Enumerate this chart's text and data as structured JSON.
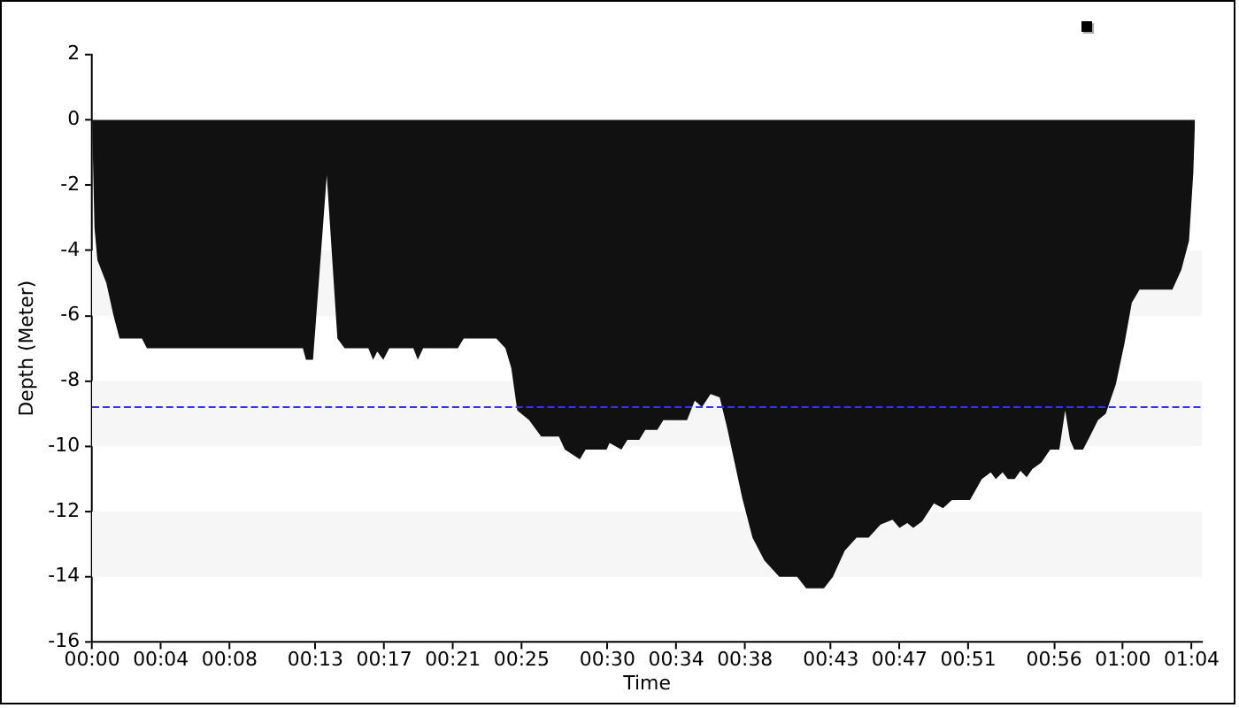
{
  "chart_data": {
    "type": "area",
    "xlabel": "Time",
    "ylabel": "Depth (Meter)",
    "x": [
      0,
      0.14,
      0.31,
      0.83,
      1.25,
      1.6,
      2.9,
      3.19,
      12.27,
      12.45,
      12.86,
      13.66,
      14.28,
      14.7,
      16.08,
      16.36,
      16.6,
      16.95,
      17.3,
      18.7,
      18.96,
      19.27,
      21.29,
      21.63,
      23.53,
      24.06,
      24.4,
      24.75,
      25.44,
      26.14,
      27.17,
      27.52,
      28.39,
      28.73,
      29.95,
      30.12,
      30.81,
      31.16,
      31.85,
      32.2,
      32.9,
      33.25,
      34.63,
      35.08,
      35.5,
      36.0,
      36.53,
      36.95,
      37.4,
      37.85,
      38.44,
      39.13,
      40.0,
      41.04,
      41.56,
      42.6,
      43.12,
      43.81,
      44.5,
      45.2,
      45.89,
      46.59,
      47.0,
      47.45,
      47.8,
      48.32,
      49.0,
      49.53,
      50.05,
      51.1,
      51.79,
      52.31,
      52.6,
      53.0,
      53.3,
      53.7,
      54.04,
      54.4,
      54.73,
      55.25,
      55.77,
      56.3,
      56.64,
      56.92,
      57.17,
      57.68,
      58.03,
      58.55,
      59.0,
      59.59,
      60.11,
      60.52,
      60.97,
      62.88,
      63.4,
      63.85,
      64.1,
      64.2
    ],
    "series": [
      {
        "color": "#111111",
        "values": [
          0,
          -3.3,
          -4.3,
          -5.0,
          -6.0,
          -6.7,
          -6.7,
          -7.0,
          -7.0,
          -7.35,
          -7.35,
          -1.7,
          -6.7,
          -7.0,
          -7.0,
          -7.35,
          -7.1,
          -7.35,
          -7.0,
          -7.0,
          -7.35,
          -7.0,
          -7.0,
          -6.7,
          -6.7,
          -7.0,
          -7.6,
          -8.9,
          -9.2,
          -9.7,
          -9.7,
          -10.1,
          -10.4,
          -10.1,
          -10.1,
          -9.9,
          -10.1,
          -9.8,
          -9.8,
          -9.5,
          -9.5,
          -9.2,
          -9.2,
          -8.6,
          -8.8,
          -8.4,
          -8.5,
          -9.4,
          -10.5,
          -11.6,
          -12.8,
          -13.5,
          -14.0,
          -14.0,
          -14.35,
          -14.35,
          -14.0,
          -13.2,
          -12.8,
          -12.8,
          -12.4,
          -12.25,
          -12.5,
          -12.35,
          -12.5,
          -12.3,
          -11.75,
          -11.9,
          -11.65,
          -11.65,
          -11.0,
          -10.8,
          -11.0,
          -10.8,
          -11.0,
          -11.0,
          -10.75,
          -10.95,
          -10.7,
          -10.5,
          -10.1,
          -10.1,
          -8.9,
          -9.8,
          -10.1,
          -10.1,
          -9.75,
          -9.2,
          -9.0,
          -8.1,
          -6.8,
          -5.6,
          -5.2,
          -5.2,
          -4.6,
          -3.7,
          -1.6,
          0
        ]
      }
    ],
    "xlim": [
      0,
      64.6
    ],
    "xticks": [
      {
        "value": 0,
        "label": "00:00"
      },
      {
        "value": 4,
        "label": "00:04"
      },
      {
        "value": 8,
        "label": "00:08"
      },
      {
        "value": 13,
        "label": "00:13"
      },
      {
        "value": 17,
        "label": "00:17"
      },
      {
        "value": 21,
        "label": "00:21"
      },
      {
        "value": 25,
        "label": "00:25"
      },
      {
        "value": 30,
        "label": "00:30"
      },
      {
        "value": 34,
        "label": "00:34"
      },
      {
        "value": 38,
        "label": "00:38"
      },
      {
        "value": 43,
        "label": "00:43"
      },
      {
        "value": 47,
        "label": "00:47"
      },
      {
        "value": 51,
        "label": "00:51"
      },
      {
        "value": 56,
        "label": "00:56"
      },
      {
        "value": 60,
        "label": "01:00"
      },
      {
        "value": 64,
        "label": "01:04"
      }
    ],
    "ylim": [
      -16,
      2
    ],
    "yticks": [
      -16,
      -14,
      -12,
      -10,
      -8,
      -6,
      -4,
      -2,
      0,
      2
    ],
    "bands": [
      {
        "axis": "y",
        "from": -14,
        "to": -12,
        "color": "#f6f6f6"
      },
      {
        "axis": "y",
        "from": -10,
        "to": -8,
        "color": "#f6f6f6"
      },
      {
        "axis": "y",
        "from": -6,
        "to": -4,
        "color": "#f6f6f6"
      }
    ],
    "ref_lines": [
      {
        "axis": "y",
        "value": -8.8,
        "color": "#3333ff",
        "line_style": "dashed"
      }
    ]
  }
}
